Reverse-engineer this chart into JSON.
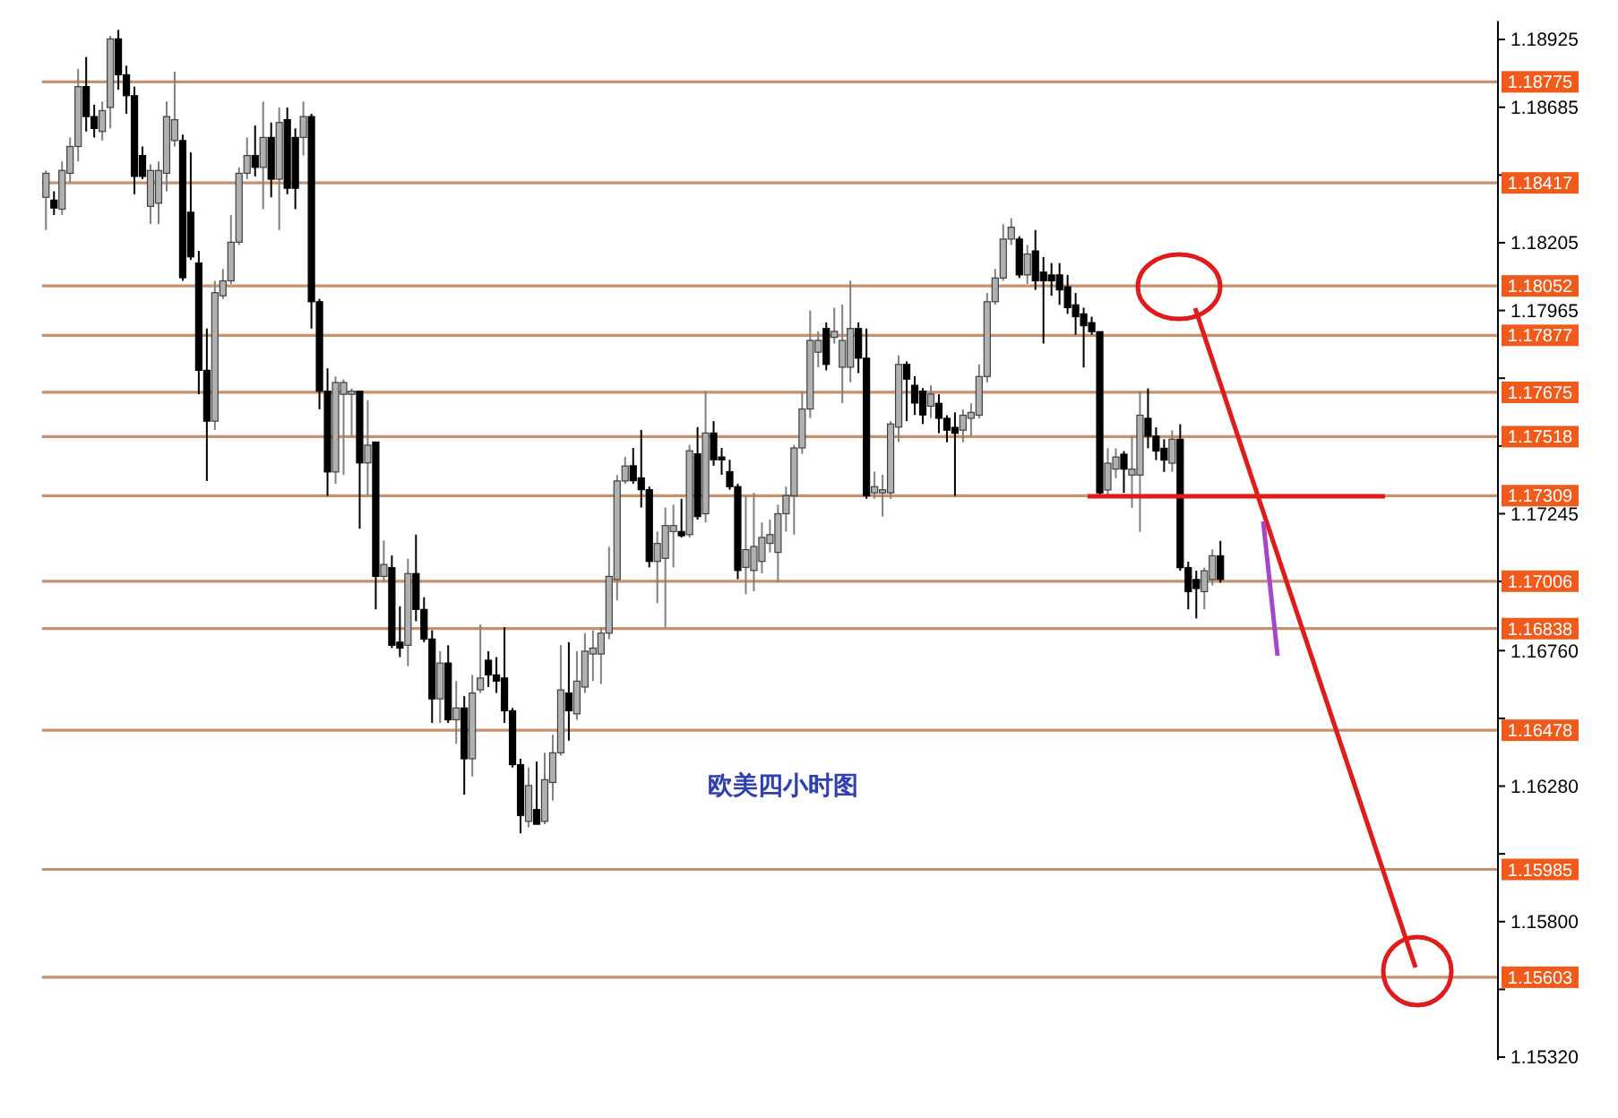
{
  "chart_data": {
    "type": "candlestick",
    "title": "欧美四小时图",
    "categories": [
      null,
      null,
      null,
      null,
      null,
      null,
      null,
      null,
      null,
      null,
      null,
      null,
      null,
      null,
      null,
      null,
      null,
      null,
      null,
      null,
      null,
      null,
      null,
      null,
      null,
      null,
      null,
      null,
      null,
      null,
      null,
      null,
      null,
      null,
      null,
      null,
      null,
      null,
      null,
      null,
      null,
      null,
      null,
      null,
      null,
      null,
      null,
      null,
      null,
      null,
      null,
      null,
      null,
      null,
      null,
      null,
      null,
      null,
      null,
      null,
      null,
      null,
      null,
      null,
      null,
      null,
      null,
      null,
      null,
      null,
      null,
      null,
      null,
      null,
      null,
      null,
      null,
      null,
      null,
      null,
      null,
      null,
      null,
      null,
      null,
      null,
      null,
      null,
      null,
      null,
      null,
      null,
      null,
      null,
      null,
      null,
      null,
      null,
      null,
      null,
      null,
      null,
      null,
      null,
      null,
      null,
      null,
      null,
      null,
      null,
      null,
      null,
      null,
      null,
      null,
      null,
      null,
      null,
      null,
      null,
      null,
      null,
      null,
      null,
      null,
      null,
      null,
      null,
      null,
      null,
      null,
      null,
      null,
      null,
      null,
      null,
      null,
      null,
      null,
      null,
      null,
      null,
      null,
      null,
      null,
      null,
      null,
      null,
      null,
      null,
      null,
      null,
      null,
      null,
      null,
      null,
      null,
      null,
      null,
      null,
      null,
      null,
      null,
      null,
      null,
      null,
      null,
      null,
      null,
      null,
      null,
      null,
      null,
      null,
      null,
      null,
      null,
      null,
      null,
      null,
      null
    ],
    "ohlc": [
      [
        1.18366,
        1.18461,
        1.1825,
        1.18451
      ],
      [
        1.18356,
        1.18387,
        1.18303,
        1.18328
      ],
      [
        1.18324,
        1.18493,
        1.18303,
        1.18461
      ],
      [
        1.18451,
        1.18578,
        1.18419,
        1.18546
      ],
      [
        1.18546,
        1.18821,
        1.18493,
        1.18758
      ],
      [
        1.18758,
        1.18863,
        1.18599,
        1.18652
      ],
      [
        1.18652,
        1.18694,
        1.18578,
        1.1861
      ],
      [
        1.18599,
        1.18705,
        1.18567,
        1.18673
      ],
      [
        1.18684,
        1.18938,
        1.1861,
        1.18927
      ],
      [
        1.18927,
        1.18959,
        1.18747,
        1.188
      ],
      [
        1.188,
        1.18832,
        1.18662,
        1.18726
      ],
      [
        1.18726,
        1.18758,
        1.18377,
        1.1844
      ],
      [
        1.18514,
        1.18546,
        1.1843,
        1.1844
      ],
      [
        1.18334,
        1.18483,
        1.18271,
        1.18461
      ],
      [
        1.18345,
        1.18493,
        1.18271,
        1.18461
      ],
      [
        1.18451,
        1.18705,
        1.18387,
        1.18652
      ],
      [
        1.18567,
        1.18811,
        1.18546,
        1.18641
      ],
      [
        1.18567,
        1.18588,
        1.1807,
        1.18081
      ],
      [
        1.18313,
        1.18525,
        1.18144,
        1.18155
      ],
      [
        1.18133,
        1.18176,
        1.17668,
        1.17753
      ],
      [
        1.17753,
        1.17901,
        1.17361,
        1.17573
      ],
      [
        1.17573,
        1.1807,
        1.17541,
        1.18028
      ],
      [
        1.18017,
        1.18112,
        1.18006,
        1.1807
      ],
      [
        1.1807,
        1.18303,
        1.18059,
        1.18207
      ],
      [
        1.18207,
        1.18472,
        1.18197,
        1.18451
      ],
      [
        1.18451,
        1.18578,
        1.1843,
        1.18514
      ],
      [
        1.18514,
        1.1862,
        1.1844,
        1.18472
      ],
      [
        1.18472,
        1.18705,
        1.18324,
        1.18578
      ],
      [
        1.18578,
        1.18631,
        1.18366,
        1.1843
      ],
      [
        1.1843,
        1.18684,
        1.1825,
        1.18631
      ],
      [
        1.18641,
        1.18684,
        1.18377,
        1.18398
      ],
      [
        1.18578,
        1.1861,
        1.18324,
        1.18398
      ],
      [
        1.18578,
        1.18705,
        1.18514,
        1.18652
      ],
      [
        1.18652,
        1.18662,
        1.17901,
        1.17996
      ],
      [
        1.17996,
        1.18006,
        1.17615,
        1.17679
      ],
      [
        1.17679,
        1.1776,
        1.17308,
        1.17393
      ],
      [
        1.17393,
        1.17731,
        1.17351,
        1.1771
      ],
      [
        1.17668,
        1.17721,
        1.17382,
        1.1771
      ],
      [
        1.17668,
        1.17689,
        1.1752,
        1.17679
      ],
      [
        1.17679,
        1.17679,
        1.17192,
        1.17425
      ],
      [
        1.17425,
        1.17647,
        1.17308,
        1.17488
      ],
      [
        1.17499,
        1.17499,
        1.16906,
        1.17023
      ],
      [
        1.17023,
        1.1715,
        1.17002,
        1.17065
      ],
      [
        1.17054,
        1.17097,
        1.16769,
        1.16779
      ],
      [
        1.1679,
        1.16917,
        1.16737,
        1.16769
      ],
      [
        1.16779,
        1.17086,
        1.16705,
        1.17033
      ],
      [
        1.17033,
        1.17171,
        1.16864,
        1.16906
      ],
      [
        1.16906,
        1.16949,
        1.1679,
        1.16801
      ],
      [
        1.16801,
        1.16832,
        1.16504,
        1.16589
      ],
      [
        1.16589,
        1.16758,
        1.16504,
        1.16716
      ],
      [
        1.16716,
        1.16779,
        1.16504,
        1.16515
      ],
      [
        1.16515,
        1.16652,
        1.1643,
        1.16557
      ],
      [
        1.16557,
        1.16599,
        1.1625,
        1.16377
      ],
      [
        1.16377,
        1.16674,
        1.16314,
        1.1661
      ],
      [
        1.16621,
        1.16853,
        1.1661,
        1.16663
      ],
      [
        1.16726,
        1.16758,
        1.16631,
        1.16674
      ],
      [
        1.16674,
        1.16737,
        1.1661,
        1.16652
      ],
      [
        1.16663,
        1.16843,
        1.16504,
        1.16547
      ],
      [
        1.16547,
        1.16557,
        1.16346,
        1.16356
      ],
      [
        1.16356,
        1.16377,
        1.16113,
        1.16176
      ],
      [
        1.16155,
        1.16346,
        1.16134,
        1.16282
      ],
      [
        1.16197,
        1.16367,
        1.16145,
        1.16145
      ],
      [
        1.16155,
        1.16398,
        1.16145,
        1.16303
      ],
      [
        1.16293,
        1.16462,
        1.16229,
        1.16398
      ],
      [
        1.16398,
        1.16779,
        1.16388,
        1.16621
      ],
      [
        1.1661,
        1.1679,
        1.16441,
        1.16547
      ],
      [
        1.16536,
        1.16758,
        1.16515,
        1.16652
      ],
      [
        1.16631,
        1.16822,
        1.1661,
        1.16758
      ],
      [
        1.16748,
        1.16832,
        1.16652,
        1.16769
      ],
      [
        1.16748,
        1.16843,
        1.16642,
        1.16822
      ],
      [
        1.16822,
        1.17128,
        1.16801,
        1.17023
      ],
      [
        1.17012,
        1.17382,
        1.16938,
        1.17361
      ],
      [
        1.17361,
        1.17446,
        1.17351,
        1.17414
      ],
      [
        1.17415,
        1.17478,
        1.17351,
        1.17362
      ],
      [
        1.17372,
        1.17542,
        1.17267,
        1.1733
      ],
      [
        1.1733,
        1.17341,
        1.17055,
        1.17076
      ],
      [
        1.17076,
        1.17182,
        1.16928,
        1.1714
      ],
      [
        1.17087,
        1.17267,
        1.16843,
        1.17203
      ],
      [
        1.17182,
        1.17277,
        1.17055,
        1.17203
      ],
      [
        1.17182,
        1.17298,
        1.17161,
        1.17167
      ],
      [
        1.17171,
        1.17489,
        1.17161,
        1.17468
      ],
      [
        1.17457,
        1.17552,
        1.17224,
        1.17235
      ],
      [
        1.17245,
        1.17679,
        1.17214,
        1.17531
      ],
      [
        1.17531,
        1.17573,
        1.17415,
        1.17436
      ],
      [
        1.17446,
        1.17478,
        1.17383,
        1.17436
      ],
      [
        1.17394,
        1.17436,
        1.1733,
        1.17341
      ],
      [
        1.17341,
        1.17351,
        1.17013,
        1.17044
      ],
      [
        1.17055,
        1.17309,
        1.1696,
        1.17118
      ],
      [
        1.17044,
        1.17319,
        1.1697,
        1.17129
      ],
      [
        1.17076,
        1.17214,
        1.17034,
        1.17161
      ],
      [
        1.1714,
        1.17224,
        1.17108,
        1.17171
      ],
      [
        1.17108,
        1.17277,
        1.17002,
        1.17245
      ],
      [
        1.17245,
        1.17341,
        1.17182,
        1.17309
      ],
      [
        1.17309,
        1.17489,
        1.17171,
        1.17478
      ],
      [
        1.17478,
        1.17679,
        1.17457,
        1.17616
      ],
      [
        1.17616,
        1.17965,
        1.17584,
        1.17859
      ],
      [
        1.17817,
        1.17891,
        1.17764,
        1.17859
      ],
      [
        1.17901,
        1.17923,
        1.17753,
        1.17774
      ],
      [
        1.1787,
        1.17975,
        1.17848,
        1.17891
      ],
      [
        1.17764,
        1.17986,
        1.17637,
        1.17859
      ],
      [
        1.17764,
        1.18071,
        1.17711,
        1.17901
      ],
      [
        1.17901,
        1.17923,
        1.17743,
        1.17796
      ],
      [
        1.17796,
        1.17901,
        1.17298,
        1.17309
      ],
      [
        1.17319,
        1.17394,
        1.17298,
        1.17341
      ],
      [
        1.17319,
        1.17383,
        1.17235,
        1.1733
      ],
      [
        1.17319,
        1.17573,
        1.17298,
        1.17563
      ],
      [
        1.17552,
        1.17806,
        1.17499,
        1.17774
      ],
      [
        1.17774,
        1.17785,
        1.17573,
        1.17722
      ],
      [
        1.177,
        1.17732,
        1.17595,
        1.17637
      ],
      [
        1.17679,
        1.1769,
        1.17563,
        1.17595
      ],
      [
        1.17626,
        1.177,
        1.17584,
        1.17669
      ],
      [
        1.17636,
        1.17668,
        1.1753,
        1.17583
      ],
      [
        1.17583,
        1.17594,
        1.17498,
        1.17541
      ],
      [
        1.17551,
        1.17604,
        1.17308,
        1.1753
      ],
      [
        1.17541,
        1.17615,
        1.17498,
        1.17594
      ],
      [
        1.17583,
        1.17636,
        1.1752,
        1.17604
      ],
      [
        1.17594,
        1.17774,
        1.17583,
        1.17731
      ],
      [
        1.17731,
        1.18027,
        1.1771,
        1.17996
      ],
      [
        1.17996,
        1.18112,
        1.17985,
        1.1808
      ],
      [
        1.1808,
        1.18271,
        1.1807,
        1.18218
      ],
      [
        1.18218,
        1.18292,
        1.18197,
        1.1826
      ],
      [
        1.18218,
        1.18228,
        1.1808,
        1.18091
      ],
      [
        1.18091,
        1.18197,
        1.18059,
        1.18165
      ],
      [
        1.18176,
        1.1825,
        1.18038,
        1.1807
      ],
      [
        1.18101,
        1.18154,
        1.17848,
        1.1807
      ],
      [
        1.18091,
        1.18133,
        1.18017,
        1.1807
      ],
      [
        1.18091,
        1.18133,
        1.17985,
        1.18038
      ],
      [
        1.18049,
        1.18091,
        1.17953,
        1.17975
      ],
      [
        1.17985,
        1.18027,
        1.17879,
        1.17943
      ],
      [
        1.17953,
        1.17975,
        1.17763,
        1.17911
      ],
      [
        1.17922,
        1.17943,
        1.17879,
        1.1789
      ],
      [
        1.1789,
        1.1789,
        1.17308,
        1.17319
      ],
      [
        1.17329,
        1.17477,
        1.17308,
        1.17424
      ],
      [
        1.17403,
        1.17477,
        1.17371,
        1.17446
      ],
      [
        1.17456,
        1.17467,
        1.17319,
        1.17403
      ],
      [
        1.17382,
        1.1752,
        1.17266,
        1.17403
      ],
      [
        1.17382,
        1.17678,
        1.17181,
        1.17594
      ],
      [
        1.17583,
        1.17689,
        1.17477,
        1.1752
      ],
      [
        1.1752,
        1.17551,
        1.17435,
        1.17467
      ],
      [
        1.17477,
        1.17509,
        1.17393,
        1.17435
      ],
      [
        1.17424,
        1.17541,
        1.17393,
        1.17509
      ],
      [
        1.17509,
        1.17562,
        1.17043,
        1.17054
      ],
      [
        1.17054,
        1.17075,
        1.16906,
        1.16969
      ],
      [
        1.17012,
        1.17043,
        1.16874,
        1.1698
      ],
      [
        1.16969,
        1.17054,
        1.16906,
        1.17043
      ],
      [
        1.17012,
        1.17118,
        1.16991,
        1.17096
      ],
      [
        1.17096,
        1.17149,
        1.17001,
        1.17012
      ],
      null,
      null,
      null,
      null,
      null,
      null,
      null,
      null,
      null,
      null,
      null,
      null,
      null,
      null,
      null,
      null,
      null,
      null,
      null,
      null,
      null,
      null,
      null,
      null,
      null,
      null,
      null,
      null,
      null,
      null,
      null,
      null,
      null,
      null
    ],
    "ylim": [
      1.1531,
      1.1899
    ],
    "yticks": [
      1.18925,
      1.18685,
      {
        "value": 1.18445,
        "label": null
      },
      1.18205,
      1.17965,
      {
        "value": 1.17725,
        "label": null
      },
      {
        "value": 1.17485,
        "label": null
      },
      1.17245,
      {
        "value": 1.17005,
        "label": null
      },
      {
        "value": 1.1676,
        "label": "1.16760"
      },
      {
        "value": 1.1652,
        "label": null
      },
      {
        "value": 1.1628,
        "label": "1.16280"
      },
      {
        "value": 1.1604,
        "label": null
      },
      {
        "value": 1.158,
        "label": "1.15800"
      },
      {
        "value": 1.1556,
        "label": null
      },
      {
        "value": 1.1532,
        "label": "1.15320"
      }
    ],
    "ref_lines": [
      {
        "axis": "y",
        "value": 1.18775,
        "label": "1.18775",
        "color": "#c8916b"
      },
      {
        "axis": "y",
        "value": 1.18417,
        "label": "1.18417",
        "color": "#c8916b"
      },
      {
        "axis": "y",
        "value": 1.18052,
        "label": "1.18052",
        "color": "#c8916b"
      },
      {
        "axis": "y",
        "value": 1.17877,
        "label": "1.17877",
        "color": "#c8916b"
      },
      {
        "axis": "y",
        "value": 1.17675,
        "label": "1.17675",
        "color": "#c8916b"
      },
      {
        "axis": "y",
        "value": 1.17518,
        "label": "1.17518",
        "color": "#c8916b"
      },
      {
        "axis": "y",
        "value": 1.17309,
        "label": "1.17309",
        "color": "#c8916b"
      },
      {
        "axis": "y",
        "value": 1.17006,
        "label": "1.17006",
        "color": "#c8916b"
      },
      {
        "axis": "y",
        "value": 1.16838,
        "label": "1.16838",
        "color": "#c8916b"
      },
      {
        "axis": "y",
        "value": 1.16478,
        "label": "1.16478",
        "color": "#c8916b"
      },
      {
        "axis": "y",
        "value": 1.15985,
        "label": "1.15985",
        "color": "#c8916b"
      },
      {
        "axis": "y",
        "value": 1.15603,
        "label": "1.15603",
        "color": "#c8916b"
      }
    ]
  }
}
